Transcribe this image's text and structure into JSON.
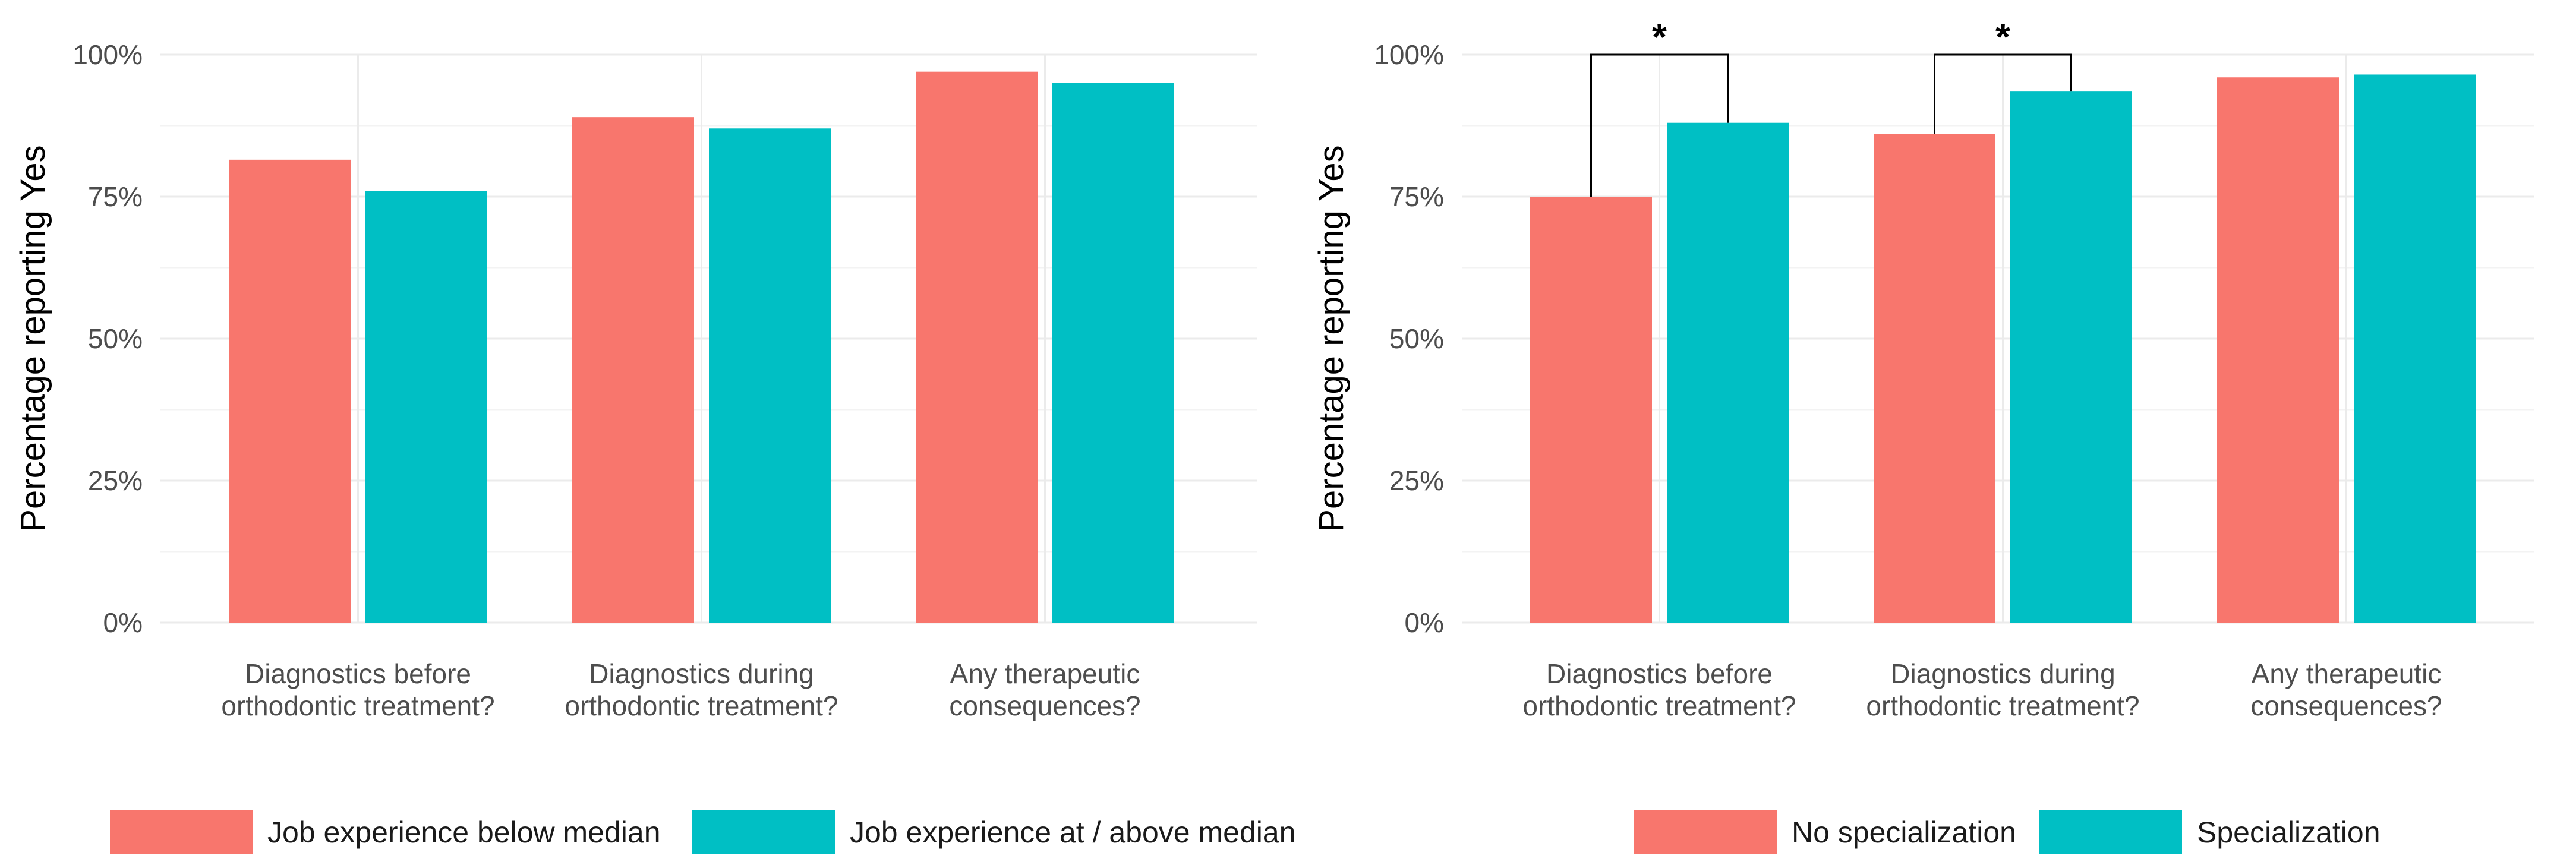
{
  "colors": {
    "group1": "#F8766D",
    "group2": "#00BFC4",
    "grid": "#ebebeb",
    "bracket": "#000000"
  },
  "chart_data": [
    {
      "type": "bar",
      "title": "",
      "xlabel": "",
      "ylabel": "Percentage reporting Yes",
      "ylim": [
        0,
        100
      ],
      "yticks": [
        "0%",
        "25%",
        "50%",
        "75%",
        "100%"
      ],
      "categories": [
        [
          "Diagnostics before",
          "orthodontic treatment?"
        ],
        [
          "Diagnostics during",
          "orthodontic treatment?"
        ],
        [
          "Any therapeutic",
          "consequences?"
        ]
      ],
      "series": [
        {
          "name": "Job experience below median",
          "values": [
            81.5,
            89,
            97
          ]
        },
        {
          "name": "Job experience at / above median",
          "values": [
            76,
            87,
            95
          ]
        }
      ],
      "significance": [],
      "legend_position": "bottom"
    },
    {
      "type": "bar",
      "title": "",
      "xlabel": "",
      "ylabel": "Percentage reporting Yes",
      "ylim": [
        0,
        100
      ],
      "yticks": [
        "0%",
        "25%",
        "50%",
        "75%",
        "100%"
      ],
      "categories": [
        [
          "Diagnostics before",
          "orthodontic treatment?"
        ],
        [
          "Diagnostics during",
          "orthodontic treatment?"
        ],
        [
          "Any therapeutic",
          "consequences?"
        ]
      ],
      "series": [
        {
          "name": "No specialization",
          "values": [
            75,
            86,
            96
          ]
        },
        {
          "name": "Specialization",
          "values": [
            88,
            93.5,
            96.5
          ]
        }
      ],
      "significance": [
        {
          "category_index": 0,
          "label": "*",
          "bracket_value": 100
        },
        {
          "category_index": 1,
          "label": "*",
          "bracket_value": 100
        }
      ],
      "legend_position": "bottom"
    }
  ]
}
